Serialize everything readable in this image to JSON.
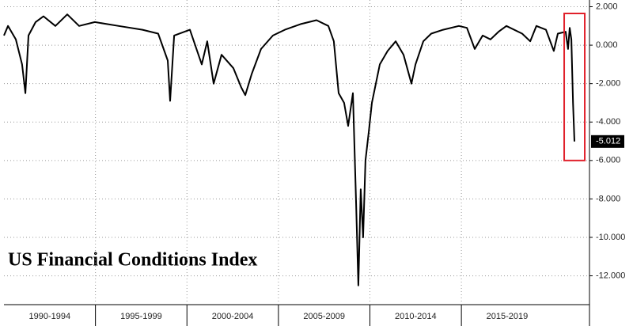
{
  "chart_data": {
    "type": "line",
    "title": "US Financial Conditions Index",
    "series": [
      {
        "name": "US Financial Conditions Index",
        "color": "#000000",
        "x": [
          1990.0,
          1990.22,
          1990.65,
          1990.99,
          1991.17,
          1991.34,
          1991.73,
          1992.16,
          1992.81,
          1993.46,
          1994.11,
          1994.97,
          1996.27,
          1997.57,
          1998.43,
          1998.95,
          1999.08,
          1999.3,
          2000.16,
          2000.81,
          2001.11,
          2001.46,
          2001.89,
          2002.54,
          2002.97,
          2003.19,
          2003.54,
          2004.05,
          2004.7,
          2005.35,
          2006.22,
          2007.08,
          2007.73,
          2008.03,
          2008.29,
          2008.59,
          2008.81,
          2009.07,
          2009.24,
          2009.37,
          2009.5,
          2009.63,
          2009.76,
          2009.94,
          2010.11,
          2010.54,
          2010.97,
          2011.41,
          2011.84,
          2012.27,
          2012.49,
          2012.92,
          2013.35,
          2014.0,
          2014.86,
          2015.3,
          2015.73,
          2016.16,
          2016.59,
          2017.03,
          2017.46,
          2018.32,
          2018.76,
          2019.1,
          2019.62,
          2020.05,
          2020.27,
          2020.7,
          2020.83,
          2020.92,
          2021.01,
          2021.1,
          2021.18
        ],
        "values": [
          0.5,
          1.0,
          0.3,
          -1.0,
          -2.5,
          0.5,
          1.2,
          1.5,
          1.0,
          1.6,
          1.0,
          1.2,
          1.0,
          0.8,
          0.6,
          -0.8,
          -2.9,
          0.5,
          0.8,
          -1.0,
          0.2,
          -2.0,
          -0.5,
          -1.2,
          -2.2,
          -2.6,
          -1.5,
          -0.2,
          0.5,
          0.8,
          1.1,
          1.3,
          1.0,
          0.2,
          -2.5,
          -3.0,
          -4.2,
          -2.5,
          -8.0,
          -12.5,
          -7.5,
          -10.0,
          -6.0,
          -4.5,
          -3.0,
          -1.0,
          -0.3,
          0.2,
          -0.5,
          -2.0,
          -1.0,
          0.2,
          0.6,
          0.8,
          1.0,
          0.9,
          -0.2,
          0.5,
          0.3,
          0.7,
          1.0,
          0.6,
          0.2,
          1.0,
          0.8,
          -0.3,
          0.6,
          0.7,
          -0.2,
          0.9,
          0.3,
          -3.0,
          -5.012
        ]
      }
    ],
    "last_label": "-5.012",
    "xlim": [
      1990,
      2022
    ],
    "xticks": [
      {
        "value": 1992.5,
        "label": "1990-1994"
      },
      {
        "value": 1997.5,
        "label": "1995-1999"
      },
      {
        "value": 2002.5,
        "label": "2000-2004"
      },
      {
        "value": 2007.5,
        "label": "2005-2009"
      },
      {
        "value": 2012.5,
        "label": "2010-2014"
      },
      {
        "value": 2017.5,
        "label": "2015-2019"
      }
    ],
    "ylim": [
      -13.5,
      2.35
    ],
    "yticks": [
      {
        "value": 2,
        "label": "2.000"
      },
      {
        "value": 0,
        "label": "0.000"
      },
      {
        "value": -2,
        "label": "-2.000"
      },
      {
        "value": -4,
        "label": "-4.000"
      },
      {
        "value": -6,
        "label": "-6.000"
      },
      {
        "value": -8,
        "label": "-8.000"
      },
      {
        "value": -10,
        "label": "-10.000"
      },
      {
        "value": -12,
        "label": "-12.000"
      }
    ],
    "grid": true
  }
}
